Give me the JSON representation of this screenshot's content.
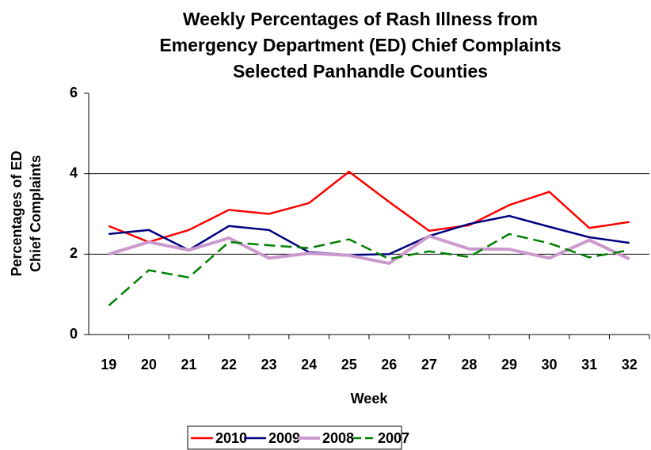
{
  "chart_data": {
    "type": "line",
    "title": [
      "Weekly Percentages of Rash Illness from",
      "Emergency Department (ED) Chief Complaints",
      "Selected Panhandle Counties"
    ],
    "y_label": [
      "Percentages of ED",
      "Chief Complaints"
    ],
    "x_label": "Week",
    "categories": [
      "19",
      "20",
      "21",
      "22",
      "23",
      "24",
      "25",
      "26",
      "27",
      "28",
      "29",
      "30",
      "31",
      "32"
    ],
    "series": [
      {
        "name": "2010",
        "color": "#ff0000",
        "dash": false,
        "values": [
          2.7,
          2.3,
          2.6,
          3.1,
          3.0,
          3.27,
          4.05,
          3.3,
          2.58,
          2.72,
          3.22,
          3.55,
          2.65,
          2.8
        ]
      },
      {
        "name": "2009",
        "color": "#000080",
        "dash": false,
        "values": [
          2.5,
          2.6,
          2.1,
          2.7,
          2.6,
          2.05,
          1.98,
          2.0,
          2.45,
          2.75,
          2.95,
          2.68,
          2.42,
          2.28
        ]
      },
      {
        "name": "2008",
        "color": "#cc99cc",
        "dash": false,
        "values": [
          2.0,
          2.3,
          2.1,
          2.4,
          1.9,
          2.02,
          1.97,
          1.77,
          2.45,
          2.13,
          2.12,
          1.9,
          2.35,
          1.88
        ]
      },
      {
        "name": "2007",
        "color": "#008000",
        "dash": true,
        "values": [
          0.72,
          1.6,
          1.42,
          2.3,
          2.22,
          2.15,
          2.37,
          1.88,
          2.07,
          1.93,
          2.5,
          2.27,
          1.92,
          2.1
        ]
      }
    ],
    "ylim": [
      0,
      6
    ],
    "yticks": [
      0,
      2,
      4,
      6
    ],
    "grid": true,
    "legend": "bottom"
  }
}
